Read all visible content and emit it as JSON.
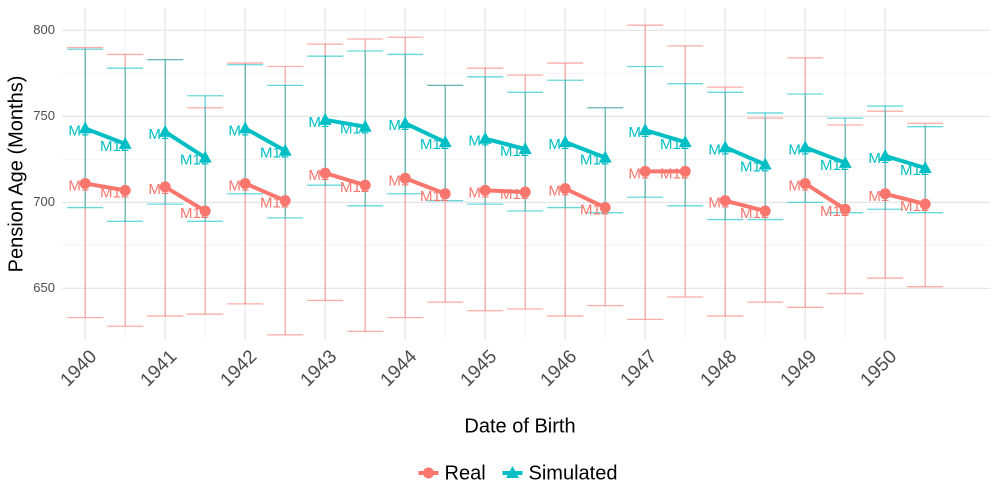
{
  "chart_data": {
    "type": "line",
    "xlabel": "Date of Birth",
    "ylabel": "Pension Age (Months)",
    "x": [
      1940,
      1940.5,
      1941,
      1941.5,
      1942,
      1942.5,
      1943,
      1943.5,
      1944,
      1944.5,
      1945,
      1945.5,
      1946,
      1946.5,
      1947,
      1947.5,
      1948,
      1948.5,
      1949,
      1949.5,
      1950,
      1950.5
    ],
    "xlim": [
      1939.71,
      1951.31
    ],
    "xticks": [
      1940,
      1941,
      1942,
      1943,
      1944,
      1945,
      1946,
      1947,
      1948,
      1949,
      1950
    ],
    "ylim": [
      620,
      813
    ],
    "yticks": [
      650,
      700,
      750,
      800
    ],
    "grid": true,
    "legend": "bottom",
    "series": [
      {
        "name": "Real",
        "color": "#F8766D",
        "marker": "circle",
        "values": [
          711,
          707,
          709,
          695,
          711,
          701,
          717,
          710,
          714,
          705,
          707,
          706,
          708,
          697,
          718,
          718,
          701,
          695,
          711,
          696,
          705,
          699
        ],
        "lower": [
          633,
          628,
          634,
          635,
          641,
          623,
          643,
          625,
          633,
          642,
          637,
          638,
          634,
          640,
          632,
          645,
          634,
          642,
          639,
          647,
          656,
          651
        ],
        "upper": [
          790,
          786,
          783,
          755,
          781,
          779,
          792,
          795,
          796,
          768,
          778,
          774,
          781,
          755,
          803,
          791,
          767,
          749,
          784,
          745,
          753,
          746
        ],
        "point_labels": [
          "M1",
          "M12",
          "M1",
          "M12",
          "M1",
          "M12",
          "M1",
          "M12",
          "M1",
          "M12",
          "M1",
          "M12",
          "M1",
          "M12",
          "M1",
          "M12",
          "M1",
          "M12",
          "M1",
          "M12",
          "M1",
          "M12"
        ]
      },
      {
        "name": "Simulated",
        "color": "#00BFC4",
        "marker": "triangle",
        "values": [
          743,
          734,
          741,
          726,
          743,
          730,
          748,
          744,
          746,
          735,
          737,
          731,
          735,
          726,
          742,
          735,
          732,
          722,
          732,
          723,
          727,
          720
        ],
        "lower": [
          697,
          689,
          699,
          689,
          705,
          691,
          710,
          698,
          705,
          701,
          699,
          695,
          697,
          694,
          703,
          698,
          690,
          690,
          700,
          694,
          696,
          694
        ],
        "upper": [
          789,
          778,
          783,
          762,
          780,
          768,
          785,
          788,
          786,
          768,
          773,
          764,
          771,
          755,
          779,
          769,
          764,
          752,
          763,
          749,
          756,
          744
        ],
        "point_labels": [
          "M1",
          "M12",
          "M1",
          "M12",
          "M1",
          "M12",
          "M1",
          "M12",
          "M1",
          "M12",
          "M1",
          "M12",
          "M1",
          "M12",
          "M1",
          "M12",
          "M1",
          "M12",
          "M1",
          "M12",
          "M1",
          "M12"
        ]
      }
    ]
  }
}
